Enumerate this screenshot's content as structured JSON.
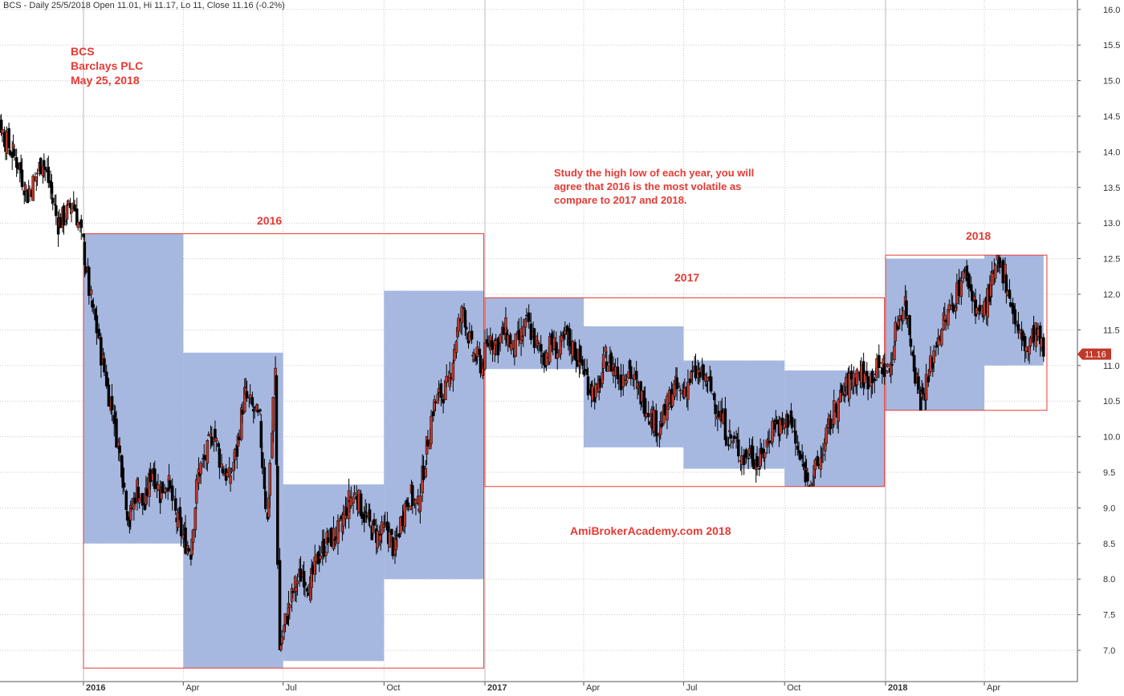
{
  "header": "BCS - Daily 25/5/2018 Open 11.01, Hi 11.17, Lo 11, Close 11.16 (-0.2%)",
  "annotations": {
    "ticker": "BCS",
    "company": "Barclays PLC",
    "date": "May 25, 2018",
    "note_line1": "Study the high low of each year, you will",
    "note_line2": "agree that 2016 is the most volatile as",
    "note_line3": "compare to 2017 and 2018.",
    "watermark": "AmiBrokerAcademy.com   2018"
  },
  "year_labels": {
    "y2016": "2016",
    "y2017": "2017",
    "y2018": "2018"
  },
  "colors": {
    "up": "#c0392b",
    "down": "#000000",
    "box_fill": "#9db0dd",
    "box_border": "#e53b34",
    "text_red": "#e53b34",
    "badge": "#c0392b"
  },
  "chart_data": {
    "type": "candlestick",
    "ylim": [
      6.8,
      16.1
    ],
    "y_ticks": [
      "7.0",
      "7.5",
      "8.0",
      "8.5",
      "9.0",
      "9.5",
      "10.0",
      "10.5",
      "11.0",
      "11.5",
      "12.0",
      "12.5",
      "13.0",
      "13.5",
      "14.0",
      "14.5",
      "15.0",
      "15.5",
      "16.0"
    ],
    "x_ticks": [
      {
        "label": "2016",
        "x": "2016-01-01",
        "bold": true
      },
      {
        "label": "Apr",
        "x": "2016-04-01",
        "bold": false
      },
      {
        "label": "Jul",
        "x": "2016-07-01",
        "bold": false
      },
      {
        "label": "Oct",
        "x": "2016-10-01",
        "bold": false
      },
      {
        "label": "2017",
        "x": "2017-01-01",
        "bold": true
      },
      {
        "label": "Apr",
        "x": "2017-04-01",
        "bold": false
      },
      {
        "label": "Jul",
        "x": "2017-07-01",
        "bold": false
      },
      {
        "label": "Oct",
        "x": "2017-10-01",
        "bold": false
      },
      {
        "label": "2018",
        "x": "2018-01-01",
        "bold": true
      },
      {
        "label": "Apr",
        "x": "2018-04-01",
        "bold": false
      }
    ],
    "last_close": "11.16",
    "quarter_ranges": [
      {
        "start": "2016-01-01",
        "end": "2016-04-01",
        "high": 12.85,
        "low": 8.5
      },
      {
        "start": "2016-04-01",
        "end": "2016-07-01",
        "high": 11.18,
        "low": 6.75
      },
      {
        "start": "2016-07-01",
        "end": "2016-10-01",
        "high": 9.33,
        "low": 6.85
      },
      {
        "start": "2016-10-01",
        "end": "2016-12-31",
        "high": 12.05,
        "low": 8.0
      },
      {
        "start": "2017-01-01",
        "end": "2017-04-01",
        "high": 11.95,
        "low": 10.95
      },
      {
        "start": "2017-04-01",
        "end": "2017-07-01",
        "high": 11.55,
        "low": 9.85
      },
      {
        "start": "2017-07-01",
        "end": "2017-10-01",
        "high": 11.07,
        "low": 9.55
      },
      {
        "start": "2017-10-01",
        "end": "2017-12-31",
        "high": 10.93,
        "low": 9.3
      },
      {
        "start": "2018-01-01",
        "end": "2018-04-01",
        "high": 12.5,
        "low": 10.37
      },
      {
        "start": "2018-04-01",
        "end": "2018-05-25",
        "high": 12.55,
        "low": 11.0
      }
    ],
    "year_ranges": [
      {
        "year": "2016",
        "start": "2016-01-01",
        "end": "2016-12-31",
        "high": 12.85,
        "low": 6.75
      },
      {
        "year": "2017",
        "start": "2017-01-01",
        "end": "2017-12-31",
        "high": 11.95,
        "low": 9.3
      },
      {
        "year": "2018",
        "start": "2018-01-01",
        "end": "2018-05-25",
        "high": 12.55,
        "low": 10.37
      }
    ],
    "price_path": [
      [
        "2015-10-01",
        15.4
      ],
      [
        "2015-10-07",
        15.2
      ],
      [
        "2015-10-14",
        14.6
      ],
      [
        "2015-10-21",
        14.2
      ],
      [
        "2015-10-28",
        14.0
      ],
      [
        "2015-11-04",
        13.8
      ],
      [
        "2015-11-11",
        13.4
      ],
      [
        "2015-11-18",
        13.6
      ],
      [
        "2015-11-25",
        13.9
      ],
      [
        "2015-12-02",
        13.5
      ],
      [
        "2015-12-09",
        13.0
      ],
      [
        "2015-12-16",
        13.1
      ],
      [
        "2015-12-23",
        13.3
      ],
      [
        "2016-01-01",
        12.7
      ],
      [
        "2016-01-08",
        11.9
      ],
      [
        "2016-01-15",
        11.4
      ],
      [
        "2016-01-22",
        10.8
      ],
      [
        "2016-01-29",
        10.3
      ],
      [
        "2016-02-05",
        9.6
      ],
      [
        "2016-02-12",
        8.8
      ],
      [
        "2016-02-19",
        9.3
      ],
      [
        "2016-02-26",
        9.0
      ],
      [
        "2016-03-04",
        9.6
      ],
      [
        "2016-03-11",
        9.2
      ],
      [
        "2016-03-18",
        9.4
      ],
      [
        "2016-03-25",
        8.9
      ],
      [
        "2016-04-01",
        8.6
      ],
      [
        "2016-04-08",
        8.4
      ],
      [
        "2016-04-15",
        9.5
      ],
      [
        "2016-04-22",
        9.7
      ],
      [
        "2016-04-29",
        10.1
      ],
      [
        "2016-05-06",
        9.6
      ],
      [
        "2016-05-13",
        9.4
      ],
      [
        "2016-05-20",
        9.8
      ],
      [
        "2016-05-27",
        10.6
      ],
      [
        "2016-06-03",
        10.4
      ],
      [
        "2016-06-10",
        10.2
      ],
      [
        "2016-06-17",
        8.8
      ],
      [
        "2016-06-24",
        10.9
      ],
      [
        "2016-06-28",
        7.0
      ],
      [
        "2016-07-05",
        7.5
      ],
      [
        "2016-07-12",
        7.9
      ],
      [
        "2016-07-19",
        8.1
      ],
      [
        "2016-07-26",
        7.9
      ],
      [
        "2016-08-02",
        8.3
      ],
      [
        "2016-08-09",
        8.5
      ],
      [
        "2016-08-16",
        8.6
      ],
      [
        "2016-08-23",
        8.7
      ],
      [
        "2016-08-30",
        9.1
      ],
      [
        "2016-09-06",
        9.2
      ],
      [
        "2016-09-13",
        8.9
      ],
      [
        "2016-09-20",
        8.7
      ],
      [
        "2016-09-27",
        8.6
      ],
      [
        "2016-10-04",
        8.7
      ],
      [
        "2016-10-11",
        8.4
      ],
      [
        "2016-10-18",
        8.9
      ],
      [
        "2016-10-25",
        9.2
      ],
      [
        "2016-11-01",
        9.0
      ],
      [
        "2016-11-08",
        9.7
      ],
      [
        "2016-11-15",
        10.4
      ],
      [
        "2016-11-22",
        10.6
      ],
      [
        "2016-11-29",
        10.7
      ],
      [
        "2016-12-06",
        11.4
      ],
      [
        "2016-12-13",
        11.8
      ],
      [
        "2016-12-20",
        11.2
      ],
      [
        "2016-12-30",
        11.0
      ],
      [
        "2017-01-06",
        11.4
      ],
      [
        "2017-01-13",
        11.3
      ],
      [
        "2017-01-20",
        11.5
      ],
      [
        "2017-01-27",
        11.2
      ],
      [
        "2017-02-03",
        11.4
      ],
      [
        "2017-02-10",
        11.6
      ],
      [
        "2017-02-17",
        11.3
      ],
      [
        "2017-02-24",
        11.1
      ],
      [
        "2017-03-03",
        11.3
      ],
      [
        "2017-03-10",
        11.2
      ],
      [
        "2017-03-17",
        11.4
      ],
      [
        "2017-03-24",
        11.2
      ],
      [
        "2017-03-31",
        11.0
      ],
      [
        "2017-04-07",
        10.7
      ],
      [
        "2017-04-14",
        10.6
      ],
      [
        "2017-04-21",
        11.1
      ],
      [
        "2017-04-28",
        11.0
      ],
      [
        "2017-05-05",
        10.8
      ],
      [
        "2017-05-12",
        11.0
      ],
      [
        "2017-05-19",
        10.7
      ],
      [
        "2017-05-26",
        10.5
      ],
      [
        "2017-06-02",
        10.3
      ],
      [
        "2017-06-09",
        10.1
      ],
      [
        "2017-06-16",
        10.4
      ],
      [
        "2017-06-23",
        10.7
      ],
      [
        "2017-06-30",
        10.6
      ],
      [
        "2017-07-07",
        10.8
      ],
      [
        "2017-07-14",
        10.9
      ],
      [
        "2017-07-21",
        10.8
      ],
      [
        "2017-07-28",
        10.6
      ],
      [
        "2017-08-04",
        10.3
      ],
      [
        "2017-08-11",
        10.0
      ],
      [
        "2017-08-18",
        9.9
      ],
      [
        "2017-08-25",
        9.7
      ],
      [
        "2017-09-01",
        9.8
      ],
      [
        "2017-09-08",
        9.6
      ],
      [
        "2017-09-15",
        9.9
      ],
      [
        "2017-09-22",
        10.2
      ],
      [
        "2017-09-29",
        10.1
      ],
      [
        "2017-10-06",
        10.3
      ],
      [
        "2017-10-13",
        9.8
      ],
      [
        "2017-10-20",
        9.5
      ],
      [
        "2017-10-27",
        9.4
      ],
      [
        "2017-11-03",
        9.7
      ],
      [
        "2017-11-10",
        10.1
      ],
      [
        "2017-11-17",
        10.4
      ],
      [
        "2017-11-24",
        10.6
      ],
      [
        "2017-12-01",
        10.8
      ],
      [
        "2017-12-08",
        10.9
      ],
      [
        "2017-12-15",
        10.8
      ],
      [
        "2017-12-22",
        10.9
      ],
      [
        "2017-12-29",
        11.0
      ],
      [
        "2018-01-05",
        10.9
      ],
      [
        "2018-01-12",
        11.6
      ],
      [
        "2018-01-19",
        11.9
      ],
      [
        "2018-01-26",
        11.2
      ],
      [
        "2018-02-02",
        10.5
      ],
      [
        "2018-02-09",
        10.8
      ],
      [
        "2018-02-16",
        11.3
      ],
      [
        "2018-02-23",
        11.6
      ],
      [
        "2018-03-02",
        11.8
      ],
      [
        "2018-03-09",
        12.1
      ],
      [
        "2018-03-16",
        12.3
      ],
      [
        "2018-03-23",
        11.9
      ],
      [
        "2018-03-30",
        11.7
      ],
      [
        "2018-04-06",
        12.0
      ],
      [
        "2018-04-13",
        12.4
      ],
      [
        "2018-04-20",
        12.3
      ],
      [
        "2018-04-27",
        11.8
      ],
      [
        "2018-05-04",
        11.4
      ],
      [
        "2018-05-11",
        11.2
      ],
      [
        "2018-05-18",
        11.5
      ],
      [
        "2018-05-25",
        11.16
      ]
    ]
  }
}
